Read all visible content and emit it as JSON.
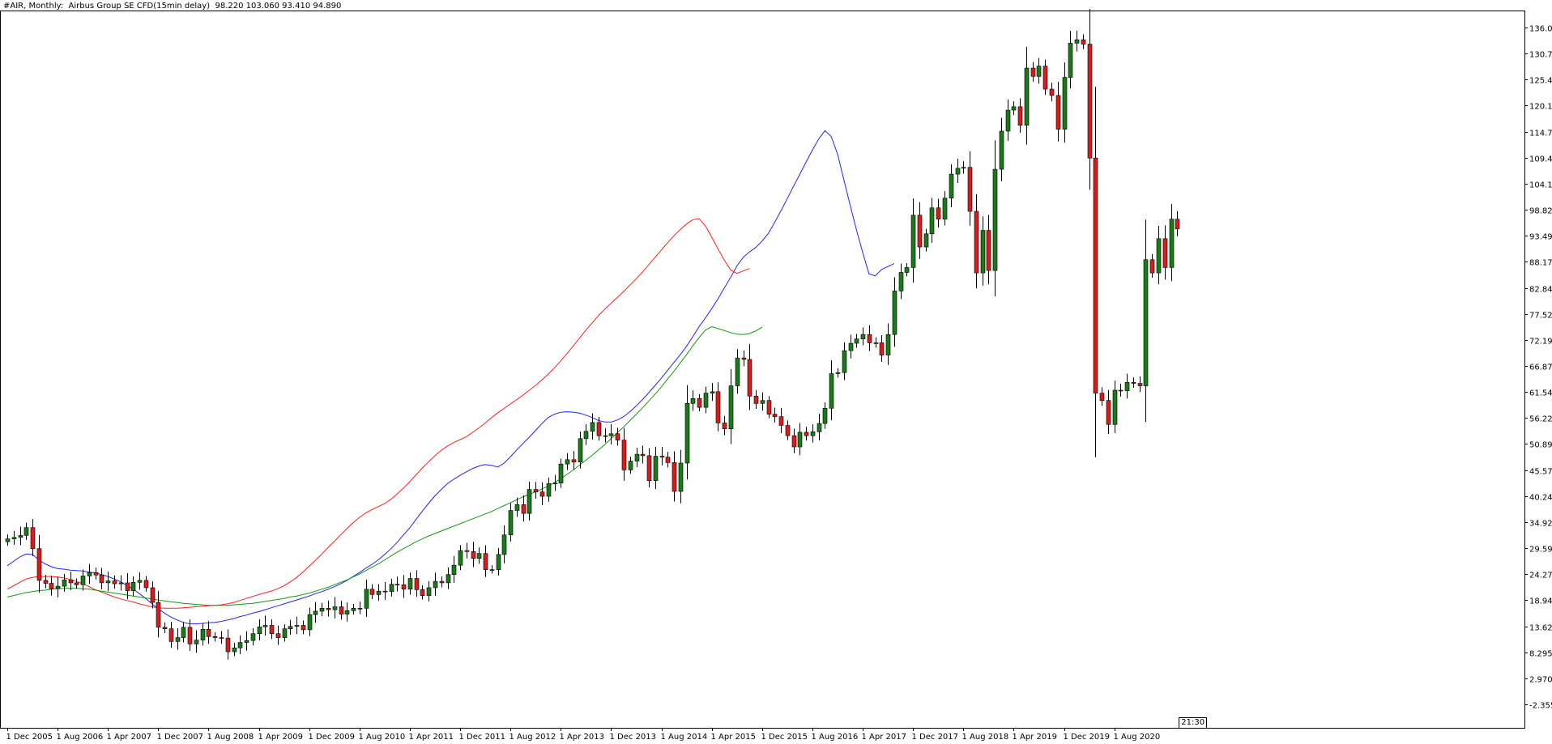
{
  "header": {
    "symbol_label": "#AIR, Monthly:",
    "description": "Airbus Group SE CFD(15min delay)",
    "ohlc": "98.220 103.060 93.410 94.890"
  },
  "time_badge": "21:30",
  "colors": {
    "background": "#ffffff",
    "bull_body": "#1a7a1a",
    "bear_body": "#d61c1c",
    "wick": "#000000",
    "ma_fast": "#2323ff",
    "ma_mid": "#ff2020",
    "ma_slow": "#119911"
  },
  "chart_data": {
    "type": "candlestick",
    "timeframe": "Monthly",
    "ylim": [
      -2.355,
      137.5
    ],
    "yticks": [
      "136.095",
      "130.770",
      "125.445",
      "120.120",
      "114.795",
      "109.470",
      "104.145",
      "98.820",
      "93.495",
      "88.170",
      "82.845",
      "77.520",
      "72.195",
      "66.870",
      "61.545",
      "56.220",
      "50.895",
      "45.570",
      "40.245",
      "34.920",
      "29.595",
      "24.270",
      "18.945",
      "13.620",
      "8.295",
      "2.970",
      "-2.355"
    ],
    "xticks": [
      "1 Dec 2005",
      "1 Aug 2006",
      "1 Apr 2007",
      "1 Dec 2007",
      "1 Aug 2008",
      "1 Apr 2009",
      "1 Dec 2009",
      "1 Aug 2010",
      "1 Apr 2011",
      "1 Dec 2011",
      "1 Aug 2012",
      "1 Apr 2013",
      "1 Dec 2013",
      "1 Aug 2014",
      "1 Apr 2015",
      "1 Dec 2015",
      "1 Aug 2016",
      "1 Apr 2017",
      "1 Dec 2017",
      "1 Aug 2018",
      "1 Apr 2019",
      "1 Dec 2019",
      "1 Aug 2020"
    ],
    "closes": [
      31.5,
      31.8,
      32.2,
      33.8,
      29.5,
      23.0,
      22.4,
      21.3,
      21.8,
      23.1,
      22.5,
      22.1,
      23.9,
      24.6,
      24.1,
      22.5,
      22.9,
      22.3,
      22.5,
      20.9,
      22.6,
      23.0,
      21.5,
      18.5,
      13.4,
      13.1,
      10.5,
      11.3,
      13.4,
      10.0,
      10.8,
      13.0,
      11.5,
      11.3,
      11.2,
      8.4,
      9.2,
      10.3,
      10.7,
      12.1,
      13.5,
      13.8,
      12.1,
      11.3,
      13.1,
      13.6,
      13.8,
      12.9,
      16.0,
      16.7,
      17.3,
      17.0,
      17.6,
      16.1,
      16.8,
      17.3,
      17.3,
      21.2,
      20.1,
      20.8,
      20.7,
      22.2,
      22.1,
      21.2,
      23.4,
      21.1,
      19.9,
      21.5,
      22.8,
      22.5,
      24.2,
      26.1,
      29.1,
      28.9,
      27.5,
      28.5,
      25.2,
      25.2,
      28.3,
      32.3,
      37.3,
      38.5,
      36.7,
      41.6,
      41.1,
      40.2,
      42.8,
      42.9,
      46.8,
      47.7,
      47.2,
      52.0,
      53.5,
      55.3,
      52.6,
      52.6,
      53.0,
      51.7,
      45.6,
      47.4,
      48.8,
      48.5,
      43.4,
      48.4,
      48.2,
      47.1,
      41.2,
      47.0,
      59.2,
      60.2,
      58.4,
      61.3,
      61.6,
      55.2,
      54.0,
      62.8,
      68.5,
      68.2,
      60.7,
      59.2,
      59.8,
      57.0,
      56.5,
      54.7,
      52.6,
      50.3,
      53.3,
      52.6,
      53.4,
      55.1,
      58.2,
      65.3,
      65.5,
      70.0,
      71.5,
      72.4,
      73.3,
      71.6,
      71.6,
      69.1,
      73.3,
      82.2,
      86.0,
      87.0,
      97.7,
      91.2,
      93.9,
      99.2,
      96.9,
      101.2,
      106.1,
      107.3,
      107.5,
      98.5,
      85.9,
      94.6,
      86.4,
      107.1,
      114.9,
      119.2,
      119.9,
      116.1,
      127.8,
      126.1,
      128.2,
      123.5,
      122.2,
      115.3,
      125.9,
      132.9,
      133.6,
      132.7,
      109.4,
      61.3,
      59.8,
      54.9,
      61.9,
      61.8,
      63.5,
      63.3,
      62.8,
      88.6,
      85.9,
      92.9,
      87.0,
      96.9,
      94.9
    ],
    "series": [
      {
        "name": "MA fast",
        "color": "#2323ff",
        "start_index": 0,
        "values": [
          26.0,
          26.9,
          27.8,
          28.4,
          28.3,
          27.2,
          26.4,
          25.8,
          25.4,
          25.3,
          25.1,
          25.0,
          24.9,
          24.7,
          24.5,
          24.2,
          23.8,
          23.3,
          22.7,
          22.0,
          21.2,
          20.3,
          19.3,
          18.2,
          17.2,
          16.3,
          15.5,
          14.9,
          14.4,
          14.1,
          14.1,
          14.2,
          14.3,
          14.4,
          14.6,
          14.9,
          15.2,
          15.6,
          15.9,
          16.3,
          16.6,
          17.0,
          17.4,
          17.8,
          18.2,
          18.6,
          19.0,
          19.4,
          19.8,
          20.3,
          20.7,
          21.2,
          21.7,
          22.3,
          23.0,
          23.8,
          24.6,
          25.5,
          26.3,
          27.2,
          28.3,
          29.5,
          30.8,
          32.3,
          33.8,
          35.5,
          37.2,
          38.8,
          40.3,
          41.6,
          42.8,
          43.7,
          44.5,
          45.2,
          45.9,
          46.4,
          46.7,
          46.5,
          46.2,
          47.0,
          48.3,
          49.7,
          51.0,
          52.3,
          53.7,
          55.1,
          56.3,
          57.0,
          57.4,
          57.5,
          57.4,
          57.2,
          56.8,
          56.3,
          55.7,
          55.4,
          55.4,
          55.8,
          56.5,
          57.5,
          58.7,
          60.0,
          61.4,
          62.9,
          64.4,
          66.0,
          67.6,
          69.2,
          70.9,
          72.9,
          74.9,
          76.7,
          78.6,
          80.6,
          82.8,
          85.0,
          87.3,
          89.1,
          90.2,
          91.1,
          92.4,
          94.0,
          96.2,
          98.6,
          101.1,
          103.6,
          106.1,
          108.6,
          111.0,
          113.3,
          115.0,
          113.8,
          110.2,
          105.0,
          99.8,
          94.7,
          90.1,
          85.7,
          85.3,
          86.6,
          87.2,
          87.8
        ]
      },
      {
        "name": "MA mid",
        "color": "#ff2020",
        "start_index": 0,
        "values": [
          21.2,
          21.9,
          22.6,
          23.3,
          23.6,
          23.8,
          23.8,
          23.8,
          23.7,
          23.5,
          23.2,
          22.8,
          22.3,
          21.7,
          21.1,
          20.6,
          20.1,
          19.6,
          19.2,
          18.9,
          18.6,
          18.2,
          17.9,
          17.6,
          17.4,
          17.3,
          17.3,
          17.3,
          17.4,
          17.5,
          17.6,
          17.7,
          17.8,
          17.9,
          18.0,
          18.2,
          18.5,
          18.9,
          19.3,
          19.7,
          20.1,
          20.5,
          20.8,
          21.3,
          21.9,
          22.7,
          23.6,
          24.7,
          25.9,
          27.1,
          28.4,
          29.7,
          31.0,
          32.3,
          33.6,
          34.8,
          35.9,
          36.8,
          37.5,
          38.1,
          38.7,
          39.6,
          40.7,
          41.9,
          43.2,
          44.6,
          46.0,
          47.3,
          48.5,
          49.6,
          50.5,
          51.2,
          51.8,
          52.4,
          53.3,
          54.2,
          55.2,
          56.3,
          57.3,
          58.2,
          59.1,
          60.0,
          60.9,
          61.9,
          62.9,
          64.0,
          65.2,
          66.5,
          67.9,
          69.4,
          71.0,
          72.6,
          74.2,
          75.7,
          77.2,
          78.5,
          79.7,
          80.9,
          82.1,
          83.4,
          84.7,
          86.1,
          87.6,
          89.1,
          90.6,
          92.1,
          93.5,
          94.8,
          95.9,
          96.8,
          97.0,
          95.5,
          93.2,
          90.8,
          88.5,
          86.5,
          85.8,
          86.3,
          86.8
        ]
      },
      {
        "name": "MA slow",
        "color": "#119911",
        "start_index": 0,
        "values": [
          19.6,
          19.9,
          20.2,
          20.5,
          20.7,
          20.9,
          21.0,
          21.2,
          21.3,
          21.4,
          21.4,
          21.4,
          21.3,
          21.2,
          21.0,
          20.8,
          20.6,
          20.4,
          20.2,
          20.0,
          19.8,
          19.6,
          19.4,
          19.2,
          19.0,
          18.8,
          18.6,
          18.5,
          18.3,
          18.2,
          18.1,
          18.0,
          17.9,
          17.9,
          17.9,
          17.9,
          18.0,
          18.1,
          18.2,
          18.3,
          18.5,
          18.7,
          18.9,
          19.1,
          19.3,
          19.6,
          19.8,
          20.1,
          20.4,
          20.8,
          21.2,
          21.6,
          22.1,
          22.6,
          23.1,
          23.7,
          24.3,
          25.0,
          25.7,
          26.4,
          27.2,
          28.0,
          28.8,
          29.5,
          30.2,
          30.9,
          31.5,
          32.1,
          32.6,
          33.1,
          33.6,
          34.1,
          34.6,
          35.1,
          35.6,
          36.1,
          36.6,
          37.1,
          37.7,
          38.3,
          38.9,
          39.5,
          40.1,
          40.6,
          41.1,
          41.7,
          42.3,
          43.0,
          43.8,
          44.7,
          45.6,
          46.6,
          47.6,
          48.6,
          49.7,
          50.8,
          52.0,
          53.2,
          54.4,
          55.7,
          57.0,
          58.3,
          59.7,
          61.1,
          62.6,
          64.2,
          65.8,
          67.5,
          69.2,
          71.0,
          72.7,
          74.2,
          74.9,
          74.5,
          74.1,
          73.7,
          73.4,
          73.3,
          73.5,
          74.0,
          74.8
        ]
      }
    ]
  }
}
